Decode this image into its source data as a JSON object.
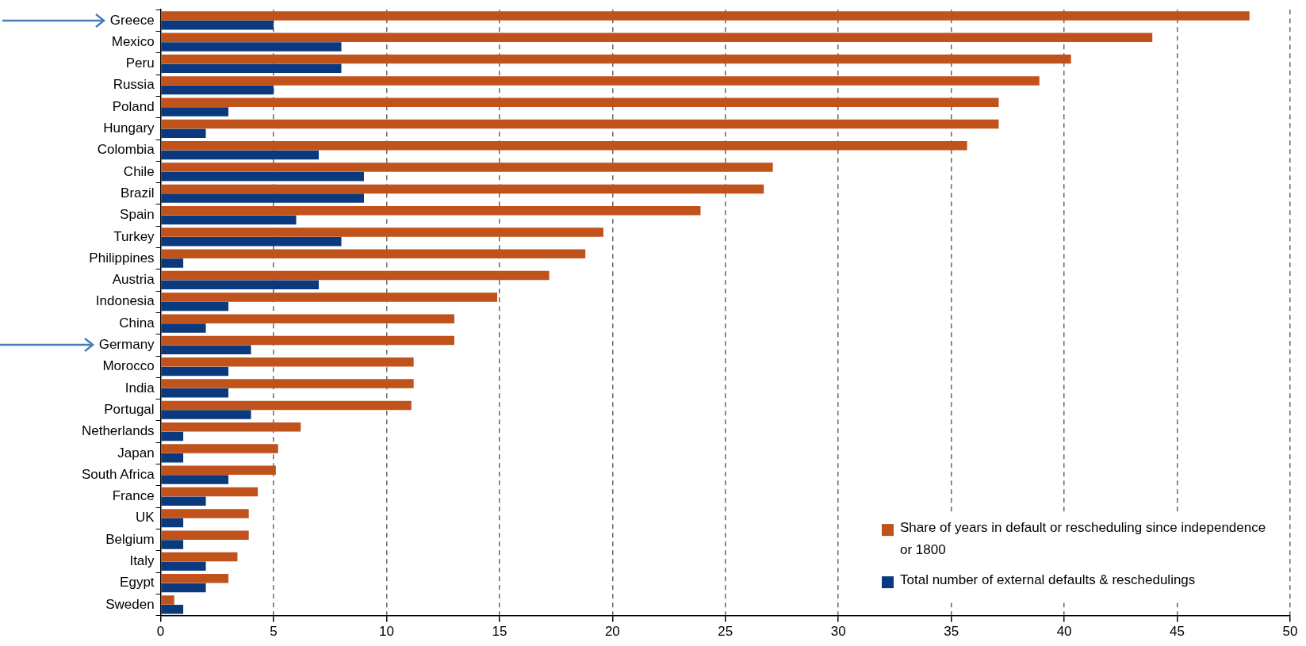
{
  "chart_data": {
    "type": "bar",
    "orientation": "horizontal",
    "categories": [
      "Greece",
      "Mexico",
      "Peru",
      "Russia",
      "Poland",
      "Hungary",
      "Colombia",
      "Chile",
      "Brazil",
      "Spain",
      "Turkey",
      "Philippines",
      "Austria",
      "Indonesia",
      "China",
      "Germany",
      "Morocco",
      "India",
      "Portugal",
      "Netherlands",
      "Japan",
      "South Africa",
      "France",
      "UK",
      "Belgium",
      "Italy",
      "Egypt",
      "Sweden"
    ],
    "series": [
      {
        "name": "Share of years in default or rescheduling since independence or 1800",
        "color": "#c0521c",
        "values": [
          48.2,
          43.9,
          40.3,
          38.9,
          37.1,
          37.1,
          35.7,
          27.1,
          26.7,
          23.9,
          19.6,
          18.8,
          17.2,
          14.9,
          13.0,
          13.0,
          11.2,
          11.2,
          11.1,
          6.2,
          5.2,
          5.1,
          4.3,
          3.9,
          3.9,
          3.4,
          3.0,
          0.6
        ]
      },
      {
        "name": "Total number of external defaults & reschedulings",
        "color": "#0a3a7d",
        "values": [
          5,
          8,
          8,
          5,
          3,
          2,
          7,
          9,
          9,
          6,
          8,
          1,
          7,
          3,
          2,
          4,
          3,
          3,
          4,
          1,
          1,
          3,
          2,
          1,
          1,
          2,
          2,
          1
        ]
      }
    ],
    "xlim": [
      0,
      50
    ],
    "xticks": [
      0,
      5,
      10,
      15,
      20,
      25,
      30,
      35,
      40,
      45,
      50
    ],
    "grid": "x",
    "legend": "bottom right"
  }
}
